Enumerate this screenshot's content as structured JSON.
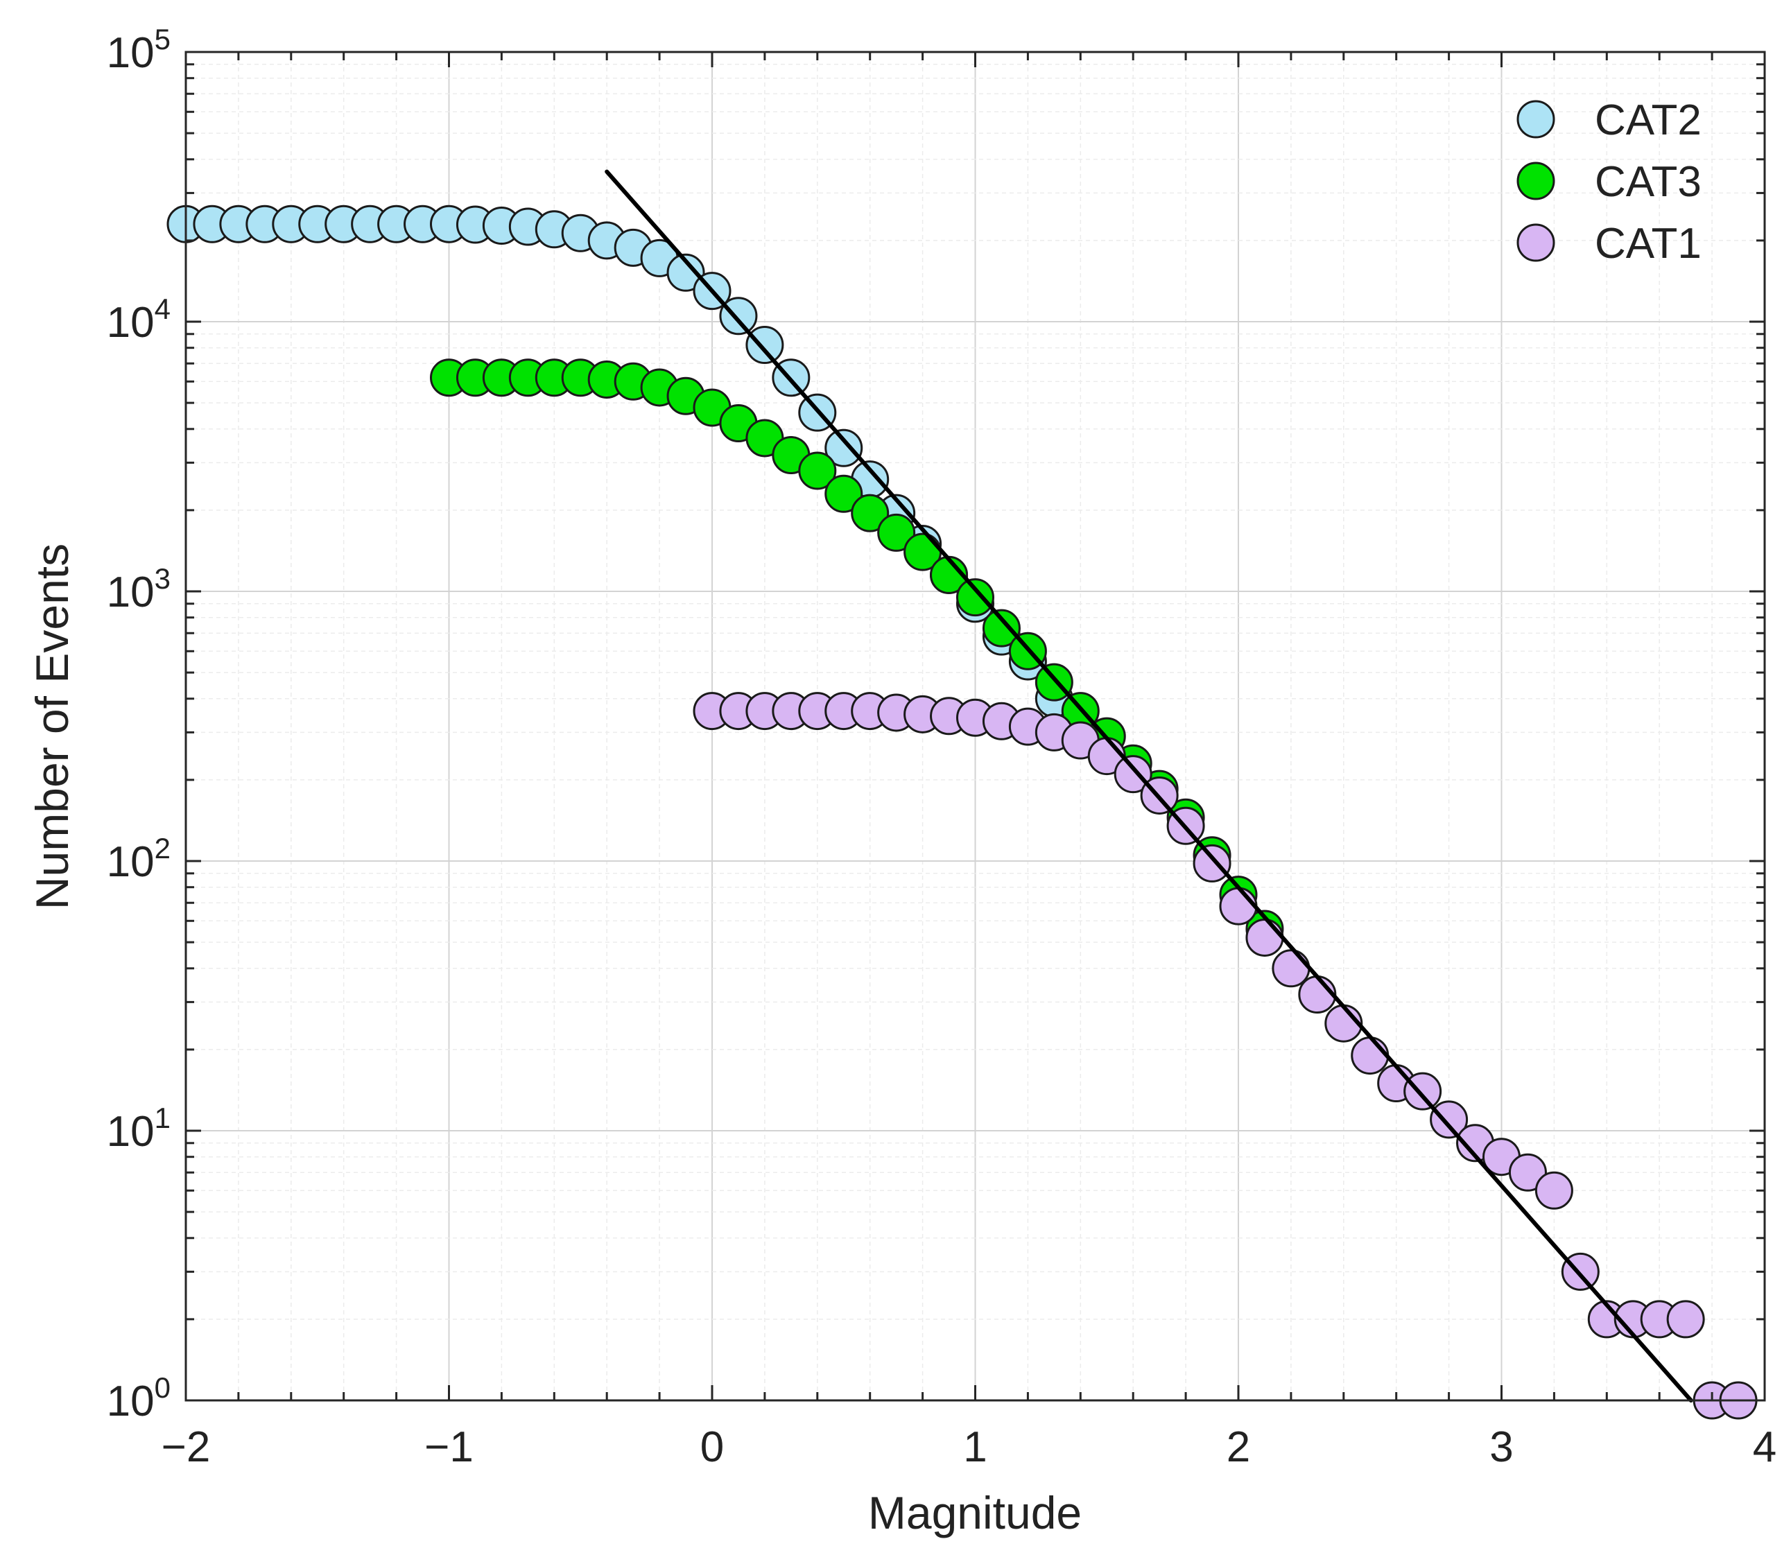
{
  "colors": {
    "cat2": "#ade3f5",
    "cat3": "#00e200",
    "cat1": "#d8b6f3",
    "fit_line": "#000000",
    "marker_edge": "#1a1a1a",
    "grid_major": "#d3d3d3",
    "grid_minor": "#ececec",
    "axis": "#262626"
  },
  "chart_data": {
    "type": "scatter",
    "title": "",
    "xlabel": "Magnitude",
    "ylabel": "Number of Events",
    "xlim": [
      -2,
      4
    ],
    "ylim": [
      1,
      100000
    ],
    "yscale": "log",
    "grid": true,
    "legend_position": "top-right",
    "x_ticks": [
      {
        "value": -2,
        "label": "−2"
      },
      {
        "value": -1,
        "label": "−1"
      },
      {
        "value": 0,
        "label": "0"
      },
      {
        "value": 1,
        "label": "1"
      },
      {
        "value": 2,
        "label": "2"
      },
      {
        "value": 3,
        "label": "3"
      },
      {
        "value": 4,
        "label": "4"
      }
    ],
    "y_ticks": [
      {
        "value": 1,
        "base": "10",
        "exp": "0"
      },
      {
        "value": 10,
        "base": "10",
        "exp": "1"
      },
      {
        "value": 100,
        "base": "10",
        "exp": "2"
      },
      {
        "value": 1000,
        "base": "10",
        "exp": "3"
      },
      {
        "value": 10000,
        "base": "10",
        "exp": "4"
      },
      {
        "value": 100000,
        "base": "10",
        "exp": "5"
      }
    ],
    "series": [
      {
        "name": "CAT2",
        "color_key": "cat2",
        "x": [
          -2.0,
          -1.9,
          -1.8,
          -1.7,
          -1.6,
          -1.5,
          -1.4,
          -1.3,
          -1.2,
          -1.1,
          -1.0,
          -0.9,
          -0.8,
          -0.7,
          -0.6,
          -0.5,
          -0.4,
          -0.3,
          -0.2,
          -0.1,
          0.0,
          0.1,
          0.2,
          0.3,
          0.4,
          0.5,
          0.6,
          0.7,
          0.8,
          0.9,
          1.0,
          1.1,
          1.2,
          1.3
        ],
        "y": [
          23000,
          23000,
          23000,
          23000,
          23000,
          23000,
          23000,
          23000,
          23000,
          23000,
          23000,
          22900,
          22700,
          22500,
          22000,
          21300,
          20000,
          18800,
          17200,
          15200,
          13000,
          10500,
          8200,
          6200,
          4600,
          3400,
          2600,
          1950,
          1500,
          1150,
          900,
          680,
          550,
          400
        ]
      },
      {
        "name": "CAT3",
        "color_key": "cat3",
        "x": [
          -1.0,
          -0.9,
          -0.8,
          -0.7,
          -0.6,
          -0.5,
          -0.4,
          -0.3,
          -0.2,
          -0.1,
          0.0,
          0.1,
          0.2,
          0.3,
          0.4,
          0.5,
          0.6,
          0.7,
          0.8,
          0.9,
          1.0,
          1.1,
          1.2,
          1.3,
          1.4,
          1.5,
          1.6,
          1.7,
          1.8,
          1.9,
          2.0,
          2.1
        ],
        "y": [
          6200,
          6200,
          6200,
          6200,
          6200,
          6200,
          6100,
          6000,
          5700,
          5300,
          4800,
          4200,
          3700,
          3200,
          2800,
          2300,
          1950,
          1650,
          1400,
          1150,
          950,
          730,
          600,
          460,
          360,
          290,
          230,
          185,
          145,
          105,
          75,
          56
        ]
      },
      {
        "name": "CAT1",
        "color_key": "cat1",
        "x": [
          0.0,
          0.1,
          0.2,
          0.3,
          0.4,
          0.5,
          0.6,
          0.7,
          0.8,
          0.9,
          1.0,
          1.1,
          1.2,
          1.3,
          1.4,
          1.5,
          1.6,
          1.7,
          1.8,
          1.9,
          2.0,
          2.1,
          2.2,
          2.3,
          2.4,
          2.5,
          2.6,
          2.7,
          2.8,
          2.9,
          3.0,
          3.1,
          3.2,
          3.3,
          3.4,
          3.5,
          3.6,
          3.7,
          3.8,
          3.9
        ],
        "y": [
          360,
          360,
          360,
          360,
          360,
          360,
          360,
          355,
          350,
          345,
          340,
          330,
          315,
          300,
          280,
          245,
          210,
          175,
          135,
          98,
          68,
          52,
          40,
          32,
          25,
          19,
          15,
          14,
          11,
          9,
          8,
          7,
          6,
          3,
          2,
          2,
          2,
          2,
          1,
          1
        ]
      }
    ],
    "fit_line": {
      "x": [
        -0.4,
        3.72
      ],
      "y": [
        36000,
        1
      ]
    },
    "legend": [
      {
        "label": "CAT2",
        "color_key": "cat2"
      },
      {
        "label": "CAT3",
        "color_key": "cat3"
      },
      {
        "label": "CAT1",
        "color_key": "cat1"
      }
    ]
  }
}
